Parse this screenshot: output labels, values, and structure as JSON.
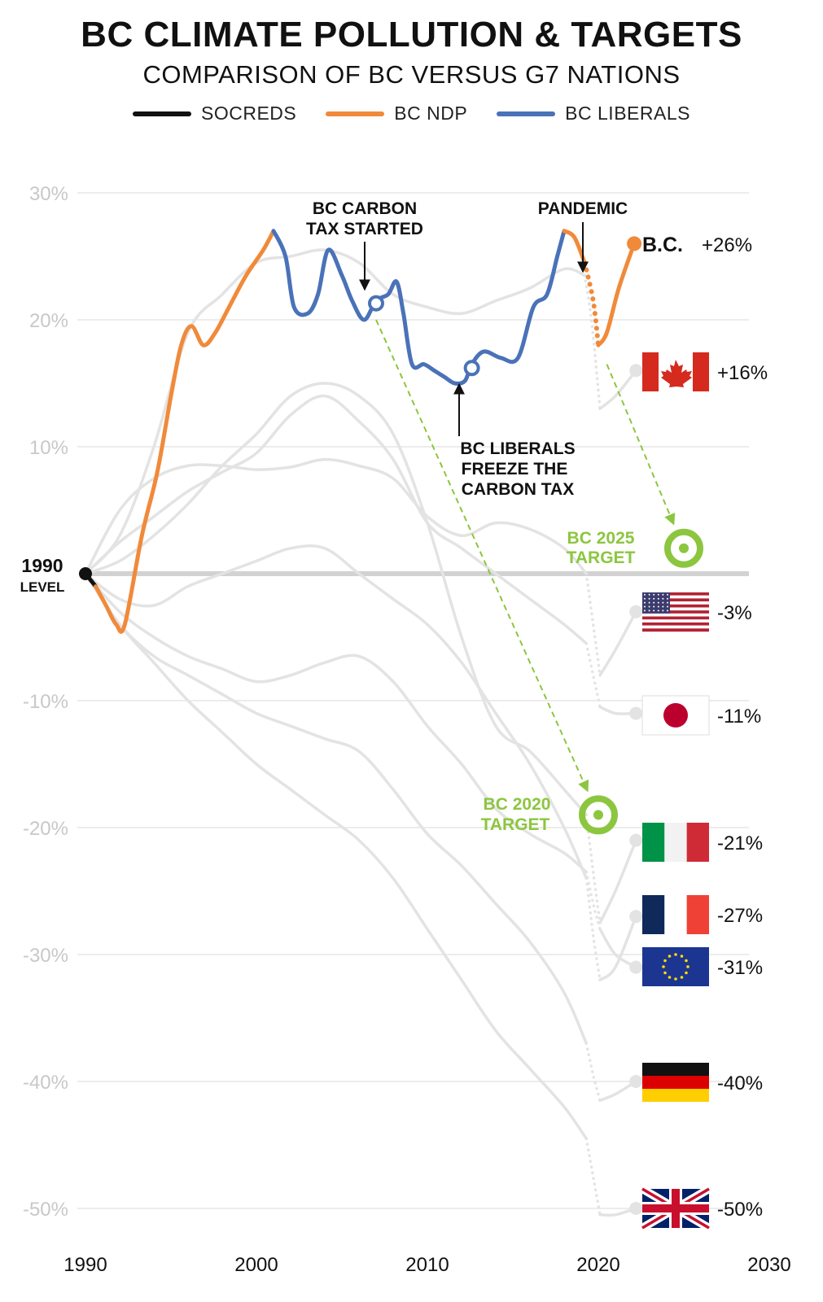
{
  "title": "BC CLIMATE POLLUTION & TARGETS",
  "subtitle": "COMPARISON OF BC VERSUS G7 NATIONS",
  "legend": [
    {
      "label": "SOCREDS",
      "color": "#111111"
    },
    {
      "label": "BC NDP",
      "color": "#f08a3a"
    },
    {
      "label": "BC LIBERALS",
      "color": "#4a72b8"
    }
  ],
  "colors": {
    "socreds": "#111111",
    "ndp": "#f08a3a",
    "liberals": "#4a72b8",
    "others": "#e3e3e3",
    "target": "#8cc63f",
    "grid": "#e6e6e6",
    "baseline": "#d2d2d2"
  },
  "baseline_label": [
    "1990",
    "LEVEL"
  ],
  "annotations": {
    "carbon_tax": [
      "BC CARBON",
      "TAX STARTED"
    ],
    "freeze": [
      "BC LIBERALS",
      "FREEZE THE",
      "CARBON TAX"
    ],
    "pandemic": "PANDEMIC",
    "target_2025": [
      "BC 2025",
      "TARGET"
    ],
    "target_2020": [
      "BC 2020",
      "TARGET"
    ]
  },
  "chart_data": {
    "type": "line",
    "title": "BC CLIMATE POLLUTION & TARGETS",
    "subtitle": "COMPARISON OF BC VERSUS G7 NATIONS",
    "xlabel": "",
    "ylabel": "",
    "xlim": [
      1990,
      2030
    ],
    "ylim": [
      -50,
      30
    ],
    "x_ticks": [
      1990,
      2000,
      2010,
      2020,
      2030
    ],
    "y_ticks": [
      30,
      20,
      10,
      0,
      -10,
      -20,
      -30,
      -40,
      -50
    ],
    "y_tick_labels": [
      "30%",
      "20%",
      "10%",
      "",
      "-10%",
      "-20%",
      "-30%",
      "-40%",
      "-50%"
    ],
    "grid": true,
    "legend_position": "top",
    "bc_series": {
      "name": "B.C.",
      "end_label": "+26%",
      "segments": [
        {
          "party": "socreds",
          "points": [
            [
              1990,
              0
            ],
            [
              1990.6,
              -1
            ]
          ]
        },
        {
          "party": "ndp",
          "points": [
            [
              1990.6,
              -1
            ],
            [
              1991.2,
              -2.5
            ],
            [
              1991.8,
              -4
            ],
            [
              1992.3,
              -4
            ],
            [
              1993.3,
              3
            ],
            [
              1994.2,
              8
            ],
            [
              1995,
              14
            ],
            [
              1995.6,
              18
            ],
            [
              1996.2,
              19.5
            ],
            [
              1996.9,
              18
            ],
            [
              1997.6,
              19
            ],
            [
              1998.4,
              21
            ],
            [
              1999.4,
              23.5
            ],
            [
              2000.4,
              25.5
            ],
            [
              2001,
              27
            ]
          ]
        },
        {
          "party": "liberals",
          "points": [
            [
              2001,
              27
            ],
            [
              2001.7,
              25
            ],
            [
              2002.2,
              21
            ],
            [
              2003,
              20.5
            ],
            [
              2003.6,
              22
            ],
            [
              2004.2,
              25.5
            ],
            [
              2005,
              23.5
            ],
            [
              2005.6,
              21.5
            ],
            [
              2006.3,
              20
            ],
            [
              2007,
              21.5
            ],
            [
              2007.7,
              22
            ],
            [
              2008.2,
              23
            ],
            [
              2008.6,
              20.5
            ],
            [
              2009.1,
              16.5
            ],
            [
              2009.8,
              16.5
            ],
            [
              2010.4,
              16
            ],
            [
              2011,
              15.5
            ],
            [
              2011.6,
              15
            ],
            [
              2012.2,
              15.2
            ],
            [
              2012.6,
              16.5
            ],
            [
              2013.3,
              17.5
            ],
            [
              2014.3,
              17
            ],
            [
              2015.3,
              17
            ],
            [
              2016.2,
              21
            ],
            [
              2017,
              22
            ],
            [
              2017.6,
              25
            ],
            [
              2018,
              27
            ]
          ]
        },
        {
          "party": "ndp",
          "points": [
            [
              2018,
              27
            ],
            [
              2018.6,
              26.5
            ],
            [
              2019.2,
              24.5
            ]
          ]
        },
        {
          "party": "ndp",
          "style": "dotted",
          "points": [
            [
              2019.2,
              24.5
            ],
            [
              2019.7,
              21.5
            ],
            [
              2020,
              18
            ]
          ]
        },
        {
          "party": "ndp",
          "points": [
            [
              2020,
              18
            ],
            [
              2020.5,
              19
            ],
            [
              2021.2,
              22.5
            ],
            [
              2022.1,
              26
            ]
          ]
        }
      ],
      "markers": [
        {
          "x": 2007,
          "y": 21.3,
          "annotation": "carbon_tax"
        },
        {
          "x": 2012.6,
          "y": 16.2,
          "annotation": "freeze"
        }
      ],
      "end_point": [
        2022.1,
        26
      ]
    },
    "comparison_series": [
      {
        "country": "Canada",
        "flag": "canada",
        "end_label": "+16%",
        "points": [
          [
            1990,
            0
          ],
          [
            1992,
            3
          ],
          [
            1994,
            10
          ],
          [
            1996,
            19
          ],
          [
            1998,
            22
          ],
          [
            2000,
            24.5
          ],
          [
            2002,
            25
          ],
          [
            2004,
            25.5
          ],
          [
            2006,
            24.5
          ],
          [
            2008,
            22
          ],
          [
            2010,
            21
          ],
          [
            2012,
            20.5
          ],
          [
            2014,
            21.5
          ],
          [
            2016,
            22.5
          ],
          [
            2018,
            24
          ],
          [
            2019.2,
            23.5
          ]
        ],
        "dotted": [
          [
            2019.2,
            23.5
          ],
          [
            2019.6,
            20
          ],
          [
            2020.1,
            13
          ]
        ],
        "tail": [
          [
            2020.1,
            13
          ],
          [
            2021,
            14
          ],
          [
            2022.2,
            16
          ]
        ]
      },
      {
        "country": "United States",
        "flag": "usa",
        "end_label": "-3%",
        "points": [
          [
            1990,
            0
          ],
          [
            1992,
            5
          ],
          [
            1994,
            7.5
          ],
          [
            1996,
            8.5
          ],
          [
            1998,
            8.5
          ],
          [
            2000,
            8.2
          ],
          [
            2002,
            8.4
          ],
          [
            2004,
            9
          ],
          [
            2006,
            8.5
          ],
          [
            2008,
            7.5
          ],
          [
            2010,
            4.5
          ],
          [
            2012,
            3
          ],
          [
            2014,
            4
          ],
          [
            2016,
            3.5
          ],
          [
            2018,
            2
          ],
          [
            2019.3,
            0
          ]
        ],
        "dotted": [
          [
            2019.3,
            0
          ],
          [
            2019.7,
            -4
          ],
          [
            2020.1,
            -8
          ]
        ],
        "tail": [
          [
            2020.1,
            -8
          ],
          [
            2021,
            -6
          ],
          [
            2022.2,
            -3
          ]
        ]
      },
      {
        "country": "Japan",
        "flag": "japan",
        "end_label": "-11%",
        "points": [
          [
            1990,
            0
          ],
          [
            1992,
            2.5
          ],
          [
            1994,
            4.5
          ],
          [
            1996,
            6.5
          ],
          [
            1998,
            8
          ],
          [
            2000,
            9.5
          ],
          [
            2002,
            12.5
          ],
          [
            2004,
            14
          ],
          [
            2006,
            12
          ],
          [
            2008,
            9
          ],
          [
            2010,
            4
          ],
          [
            2012,
            2
          ],
          [
            2014,
            0
          ],
          [
            2016,
            -2
          ],
          [
            2018,
            -4
          ],
          [
            2019.3,
            -5.5
          ]
        ],
        "dotted": [
          [
            2019.3,
            -5.5
          ],
          [
            2019.7,
            -8
          ],
          [
            2020.1,
            -10.5
          ]
        ],
        "tail": [
          [
            2020.1,
            -10.5
          ],
          [
            2021,
            -11
          ],
          [
            2022.2,
            -11
          ]
        ]
      },
      {
        "country": "Italy",
        "flag": "italy",
        "end_label": "-21%",
        "points": [
          [
            1990,
            0
          ],
          [
            1992,
            1
          ],
          [
            1994,
            3
          ],
          [
            1996,
            5.5
          ],
          [
            1998,
            8.5
          ],
          [
            2000,
            11
          ],
          [
            2002,
            14
          ],
          [
            2004,
            15
          ],
          [
            2006,
            14
          ],
          [
            2008,
            11
          ],
          [
            2010,
            4
          ],
          [
            2012,
            -5
          ],
          [
            2014,
            -12
          ],
          [
            2016,
            -14
          ],
          [
            2018,
            -17
          ],
          [
            2019.3,
            -19
          ]
        ],
        "dotted": [
          [
            2019.3,
            -19
          ],
          [
            2019.7,
            -23.5
          ],
          [
            2020.1,
            -27.5
          ]
        ],
        "tail": [
          [
            2020.1,
            -27.5
          ],
          [
            2021,
            -25
          ],
          [
            2022.2,
            -21
          ]
        ]
      },
      {
        "country": "France",
        "flag": "france",
        "end_label": "-27%",
        "points": [
          [
            1990,
            0
          ],
          [
            1992,
            -2
          ],
          [
            1994,
            -2.5
          ],
          [
            1996,
            -1
          ],
          [
            1998,
            0
          ],
          [
            2000,
            1
          ],
          [
            2002,
            2
          ],
          [
            2004,
            2
          ],
          [
            2006,
            0
          ],
          [
            2008,
            -2
          ],
          [
            2010,
            -4
          ],
          [
            2012,
            -7
          ],
          [
            2014,
            -11
          ],
          [
            2016,
            -15
          ],
          [
            2018,
            -20
          ],
          [
            2019.3,
            -24
          ]
        ],
        "dotted": [
          [
            2019.3,
            -24
          ],
          [
            2019.7,
            -28.5
          ],
          [
            2020.1,
            -32
          ]
        ],
        "tail": [
          [
            2020.1,
            -32
          ],
          [
            2021,
            -31
          ],
          [
            2022.2,
            -27
          ]
        ]
      },
      {
        "country": "European Union",
        "flag": "eu",
        "end_label": "-31%",
        "points": [
          [
            1990,
            0
          ],
          [
            1992,
            -3
          ],
          [
            1994,
            -5
          ],
          [
            1996,
            -6.5
          ],
          [
            1998,
            -7.5
          ],
          [
            2000,
            -8.5
          ],
          [
            2002,
            -8
          ],
          [
            2004,
            -7
          ],
          [
            2006,
            -6.5
          ],
          [
            2008,
            -8.5
          ],
          [
            2010,
            -12
          ],
          [
            2012,
            -15
          ],
          [
            2014,
            -18.5
          ],
          [
            2016,
            -20.5
          ],
          [
            2018,
            -22
          ],
          [
            2019.3,
            -23.5
          ]
        ],
        "dotted": [
          [
            2019.3,
            -23.5
          ],
          [
            2019.7,
            -26
          ],
          [
            2020.1,
            -28
          ]
        ],
        "tail": [
          [
            2020.1,
            -28
          ],
          [
            2021,
            -30
          ],
          [
            2022.2,
            -31
          ]
        ]
      },
      {
        "country": "Germany",
        "flag": "germany",
        "end_label": "-40%",
        "points": [
          [
            1990,
            0
          ],
          [
            1992,
            -4
          ],
          [
            1994,
            -6.5
          ],
          [
            1996,
            -8
          ],
          [
            1998,
            -9.5
          ],
          [
            2000,
            -11
          ],
          [
            2002,
            -12
          ],
          [
            2004,
            -13
          ],
          [
            2006,
            -14
          ],
          [
            2008,
            -17
          ],
          [
            2010,
            -20.5
          ],
          [
            2012,
            -23
          ],
          [
            2014,
            -26
          ],
          [
            2016,
            -29
          ],
          [
            2018,
            -33
          ],
          [
            2019.3,
            -37
          ]
        ],
        "dotted": [
          [
            2019.3,
            -37
          ],
          [
            2019.7,
            -39.5
          ],
          [
            2020.1,
            -41.5
          ]
        ],
        "tail": [
          [
            2020.1,
            -41.5
          ],
          [
            2021,
            -41
          ],
          [
            2022.2,
            -40
          ]
        ]
      },
      {
        "country": "United Kingdom",
        "flag": "uk",
        "end_label": "-50%",
        "points": [
          [
            1990,
            0
          ],
          [
            1992,
            -4
          ],
          [
            1994,
            -7
          ],
          [
            1996,
            -10
          ],
          [
            1998,
            -12.5
          ],
          [
            2000,
            -15
          ],
          [
            2002,
            -17
          ],
          [
            2004,
            -19
          ],
          [
            2006,
            -21
          ],
          [
            2008,
            -24
          ],
          [
            2010,
            -28
          ],
          [
            2012,
            -32
          ],
          [
            2014,
            -36
          ],
          [
            2016,
            -39
          ],
          [
            2018,
            -42
          ],
          [
            2019.3,
            -44.5
          ]
        ],
        "dotted": [
          [
            2019.3,
            -44.5
          ],
          [
            2019.7,
            -47.5
          ],
          [
            2020.1,
            -50.5
          ]
        ],
        "tail": [
          [
            2020.1,
            -50.5
          ],
          [
            2021,
            -50.5
          ],
          [
            2022.2,
            -50
          ]
        ]
      }
    ],
    "targets": [
      {
        "name": "BC 2025 TARGET",
        "x": 2025,
        "y": 2,
        "from": [
          2020.5,
          16.5
        ]
      },
      {
        "name": "BC 2020 TARGET",
        "x": 2020,
        "y": -19,
        "from": [
          2007,
          20
        ]
      }
    ]
  }
}
